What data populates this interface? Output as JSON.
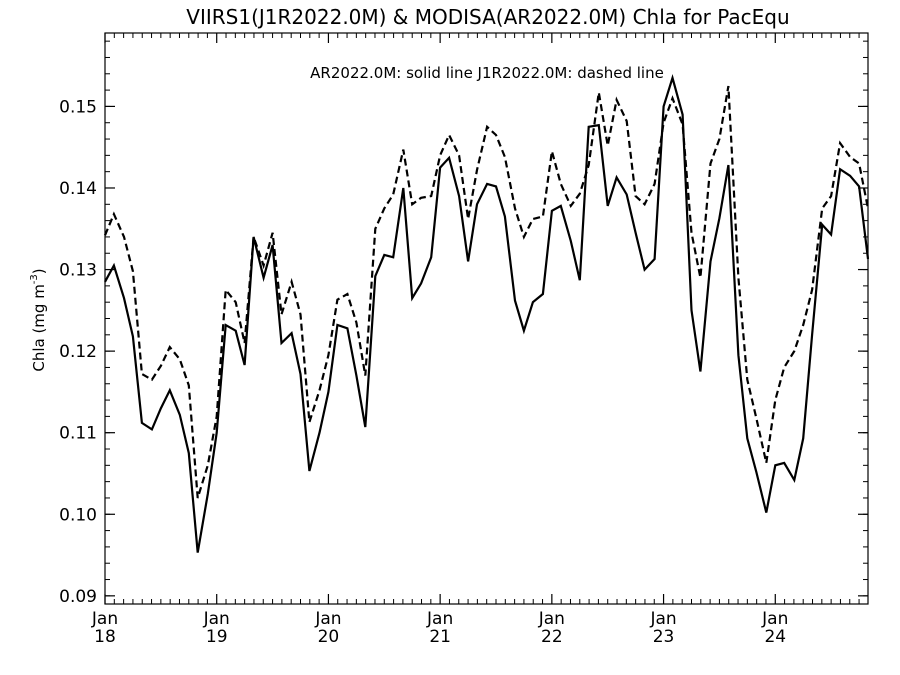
{
  "chart_data": {
    "type": "line",
    "title": "VIIRS1(J1R2022.0M) & MODISA(AR2022.0M)  Chla for PacEqu",
    "annotation": "AR2022.0M: solid line   J1R2022.0M: dashed line",
    "ylabel_main": "Chla (mg m",
    "ylabel_sup": "-3",
    "ylabel_close": ")",
    "xlim": [
      2018.0,
      2024.83
    ],
    "ylim": [
      0.089,
      0.159
    ],
    "yticks": [
      0.09,
      0.1,
      0.11,
      0.12,
      0.13,
      0.14,
      0.15
    ],
    "ytick_labels": [
      "0.09",
      "0.10",
      "0.11",
      "0.12",
      "0.13",
      "0.14",
      "0.15"
    ],
    "xticks": [
      {
        "x": 2018,
        "line1": "Jan",
        "line2": "18"
      },
      {
        "x": 2019,
        "line1": "Jan",
        "line2": "19"
      },
      {
        "x": 2020,
        "line1": "Jan",
        "line2": "20"
      },
      {
        "x": 2021,
        "line1": "Jan",
        "line2": "21"
      },
      {
        "x": 2022,
        "line1": "Jan",
        "line2": "22"
      },
      {
        "x": 2023,
        "line1": "Jan",
        "line2": "23"
      },
      {
        "x": 2024,
        "line1": "Jan",
        "line2": "24"
      }
    ],
    "series": [
      {
        "name": "AR2022.0M",
        "style": "solid",
        "color": "#000000",
        "values": [
          [
            2018.0,
            0.1285
          ],
          [
            2018.08,
            0.1305
          ],
          [
            2018.17,
            0.1265
          ],
          [
            2018.25,
            0.1218
          ],
          [
            2018.33,
            0.1112
          ],
          [
            2018.42,
            0.1104
          ],
          [
            2018.5,
            0.113
          ],
          [
            2018.58,
            0.1152
          ],
          [
            2018.67,
            0.1122
          ],
          [
            2018.75,
            0.1075
          ],
          [
            2018.83,
            0.0953
          ],
          [
            2018.92,
            0.1025
          ],
          [
            2019.0,
            0.11
          ],
          [
            2019.08,
            0.1232
          ],
          [
            2019.17,
            0.1225
          ],
          [
            2019.25,
            0.1183
          ],
          [
            2019.33,
            0.134
          ],
          [
            2019.42,
            0.129
          ],
          [
            2019.5,
            0.133
          ],
          [
            2019.58,
            0.121
          ],
          [
            2019.67,
            0.1222
          ],
          [
            2019.75,
            0.1172
          ],
          [
            2019.83,
            0.1053
          ],
          [
            2019.92,
            0.11
          ],
          [
            2020.0,
            0.115
          ],
          [
            2020.08,
            0.1232
          ],
          [
            2020.17,
            0.1228
          ],
          [
            2020.25,
            0.117
          ],
          [
            2020.33,
            0.1107
          ],
          [
            2020.42,
            0.1292
          ],
          [
            2020.5,
            0.1318
          ],
          [
            2020.58,
            0.1315
          ],
          [
            2020.67,
            0.14
          ],
          [
            2020.75,
            0.1265
          ],
          [
            2020.83,
            0.1283
          ],
          [
            2020.92,
            0.1315
          ],
          [
            2021.0,
            0.1425
          ],
          [
            2021.08,
            0.1437
          ],
          [
            2021.17,
            0.139
          ],
          [
            2021.25,
            0.131
          ],
          [
            2021.33,
            0.138
          ],
          [
            2021.42,
            0.1405
          ],
          [
            2021.5,
            0.1402
          ],
          [
            2021.58,
            0.1365
          ],
          [
            2021.67,
            0.1262
          ],
          [
            2021.75,
            0.1225
          ],
          [
            2021.83,
            0.126
          ],
          [
            2021.92,
            0.127
          ],
          [
            2022.0,
            0.1372
          ],
          [
            2022.08,
            0.1378
          ],
          [
            2022.17,
            0.1335
          ],
          [
            2022.25,
            0.1287
          ],
          [
            2022.33,
            0.1475
          ],
          [
            2022.42,
            0.1477
          ],
          [
            2022.5,
            0.1378
          ],
          [
            2022.58,
            0.1413
          ],
          [
            2022.67,
            0.1392
          ],
          [
            2022.75,
            0.1345
          ],
          [
            2022.83,
            0.13
          ],
          [
            2022.92,
            0.1313
          ],
          [
            2023.0,
            0.15
          ],
          [
            2023.08,
            0.1535
          ],
          [
            2023.17,
            0.149
          ],
          [
            2023.25,
            0.125
          ],
          [
            2023.33,
            0.1175
          ],
          [
            2023.42,
            0.131
          ],
          [
            2023.5,
            0.1363
          ],
          [
            2023.58,
            0.1428
          ],
          [
            2023.67,
            0.1195
          ],
          [
            2023.75,
            0.1093
          ],
          [
            2023.83,
            0.1052
          ],
          [
            2023.92,
            0.1002
          ],
          [
            2024.0,
            0.106
          ],
          [
            2024.08,
            0.1063
          ],
          [
            2024.17,
            0.1042
          ],
          [
            2024.25,
            0.1093
          ],
          [
            2024.33,
            0.122
          ],
          [
            2024.42,
            0.1355
          ],
          [
            2024.5,
            0.1343
          ],
          [
            2024.58,
            0.1423
          ],
          [
            2024.67,
            0.1415
          ],
          [
            2024.75,
            0.1402
          ],
          [
            2024.83,
            0.1313
          ]
        ]
      },
      {
        "name": "J1R2022.0M",
        "style": "dashed",
        "color": "#000000",
        "values": [
          [
            2018.0,
            0.1342
          ],
          [
            2018.08,
            0.1368
          ],
          [
            2018.17,
            0.134
          ],
          [
            2018.25,
            0.1298
          ],
          [
            2018.33,
            0.1172
          ],
          [
            2018.42,
            0.1165
          ],
          [
            2018.5,
            0.1182
          ],
          [
            2018.58,
            0.1205
          ],
          [
            2018.67,
            0.119
          ],
          [
            2018.75,
            0.1158
          ],
          [
            2018.83,
            0.102
          ],
          [
            2018.92,
            0.106
          ],
          [
            2019.0,
            0.112
          ],
          [
            2019.08,
            0.1275
          ],
          [
            2019.17,
            0.126
          ],
          [
            2019.25,
            0.121
          ],
          [
            2019.33,
            0.134
          ],
          [
            2019.42,
            0.1305
          ],
          [
            2019.5,
            0.1345
          ],
          [
            2019.58,
            0.1245
          ],
          [
            2019.67,
            0.1285
          ],
          [
            2019.75,
            0.1245
          ],
          [
            2019.83,
            0.1113
          ],
          [
            2019.92,
            0.1152
          ],
          [
            2020.0,
            0.1195
          ],
          [
            2020.08,
            0.1263
          ],
          [
            2020.17,
            0.127
          ],
          [
            2020.25,
            0.1235
          ],
          [
            2020.33,
            0.117
          ],
          [
            2020.42,
            0.135
          ],
          [
            2020.5,
            0.1375
          ],
          [
            2020.58,
            0.1392
          ],
          [
            2020.67,
            0.1447
          ],
          [
            2020.75,
            0.138
          ],
          [
            2020.83,
            0.1388
          ],
          [
            2020.92,
            0.139
          ],
          [
            2021.0,
            0.144
          ],
          [
            2021.08,
            0.1465
          ],
          [
            2021.17,
            0.144
          ],
          [
            2021.25,
            0.1362
          ],
          [
            2021.33,
            0.1422
          ],
          [
            2021.42,
            0.1475
          ],
          [
            2021.5,
            0.1465
          ],
          [
            2021.58,
            0.1438
          ],
          [
            2021.67,
            0.1375
          ],
          [
            2021.75,
            0.134
          ],
          [
            2021.83,
            0.1362
          ],
          [
            2021.92,
            0.1365
          ],
          [
            2022.0,
            0.1445
          ],
          [
            2022.08,
            0.1405
          ],
          [
            2022.17,
            0.1378
          ],
          [
            2022.25,
            0.1393
          ],
          [
            2022.33,
            0.1428
          ],
          [
            2022.42,
            0.1517
          ],
          [
            2022.5,
            0.1452
          ],
          [
            2022.58,
            0.1508
          ],
          [
            2022.67,
            0.1482
          ],
          [
            2022.75,
            0.139
          ],
          [
            2022.83,
            0.138
          ],
          [
            2022.92,
            0.1405
          ],
          [
            2023.0,
            0.148
          ],
          [
            2023.08,
            0.151
          ],
          [
            2023.17,
            0.1478
          ],
          [
            2023.25,
            0.1345
          ],
          [
            2023.33,
            0.129
          ],
          [
            2023.42,
            0.143
          ],
          [
            2023.5,
            0.146
          ],
          [
            2023.58,
            0.1525
          ],
          [
            2023.67,
            0.129
          ],
          [
            2023.75,
            0.1165
          ],
          [
            2023.83,
            0.1118
          ],
          [
            2023.92,
            0.1063
          ],
          [
            2024.0,
            0.114
          ],
          [
            2024.08,
            0.118
          ],
          [
            2024.17,
            0.12
          ],
          [
            2024.25,
            0.1232
          ],
          [
            2024.33,
            0.1275
          ],
          [
            2024.42,
            0.1375
          ],
          [
            2024.5,
            0.139
          ],
          [
            2024.58,
            0.1455
          ],
          [
            2024.67,
            0.1438
          ],
          [
            2024.75,
            0.143
          ],
          [
            2024.83,
            0.1375
          ]
        ]
      }
    ]
  }
}
